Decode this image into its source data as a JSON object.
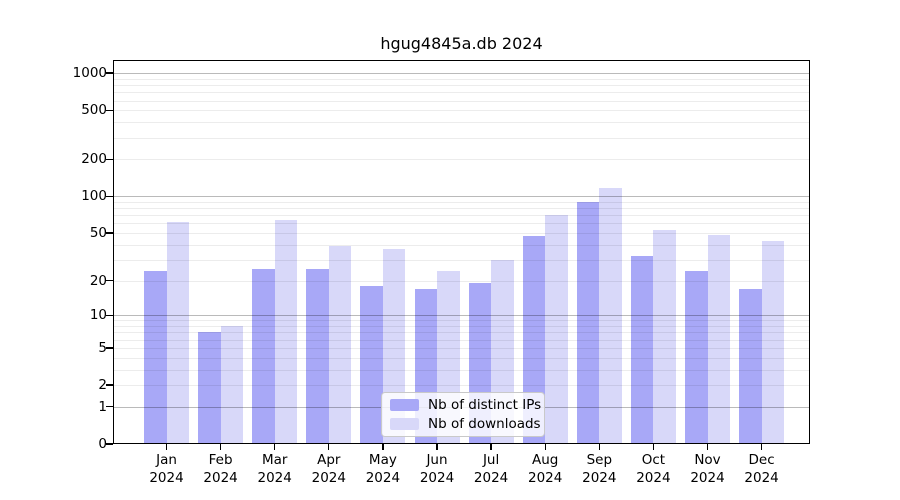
{
  "title": "hgug4845a.db 2024",
  "chart_data": {
    "type": "bar",
    "title": "hgug4845a.db 2024",
    "xlabel": "",
    "ylabel": "",
    "categories": [
      "Jan",
      "Feb",
      "Mar",
      "Apr",
      "May",
      "Jun",
      "Jul",
      "Aug",
      "Sep",
      "Oct",
      "Nov",
      "Dec"
    ],
    "year_label": "2024",
    "series": [
      {
        "name": "Nb of distinct IPs",
        "color": "#a8a8f7",
        "values": [
          24,
          7,
          25,
          25,
          18,
          17,
          19,
          47,
          90,
          32,
          24,
          17
        ]
      },
      {
        "name": "Nb of downloads",
        "color": "#d8d8f9",
        "values": [
          62,
          8,
          64,
          39,
          37,
          24,
          30,
          70,
          116,
          53,
          48,
          43
        ]
      }
    ],
    "yscale": "log10(1+x)",
    "yticks": [
      0,
      1,
      2,
      5,
      10,
      20,
      50,
      100,
      200,
      500,
      1000
    ],
    "grid_major": [
      1,
      10,
      100,
      1000
    ],
    "grid_minor": [
      2,
      3,
      4,
      5,
      6,
      7,
      8,
      9,
      20,
      30,
      40,
      50,
      60,
      70,
      80,
      90,
      200,
      300,
      400,
      500,
      600,
      700,
      800,
      900
    ],
    "ylim": [
      0,
      1280
    ],
    "grid": "horizontal, drawn over bars",
    "legend_position": "lower center"
  }
}
